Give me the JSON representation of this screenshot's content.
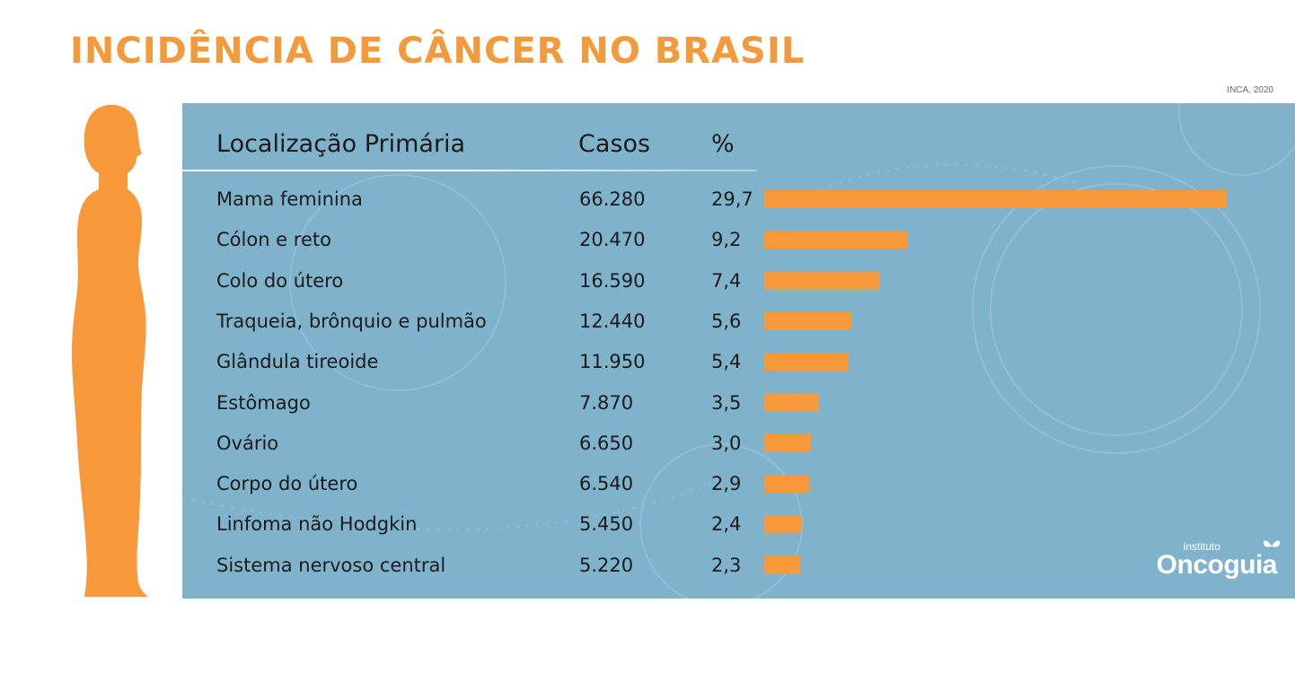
{
  "title": "INCIDÊNCIA DE CÂNCER NO BRASIL",
  "source": "INCA, 2020",
  "logo": {
    "small": "instituto",
    "big": "Oncoguia"
  },
  "colors": {
    "accent": "#f29a3c",
    "panel": "#7fb3cc",
    "bar": "#f7993a"
  },
  "icons": [
    "human-silhouette-icon",
    "butterfly-icon"
  ],
  "chart_data": {
    "type": "table",
    "title": "INCIDÊNCIA DE CÂNCER NO BRASIL",
    "columns": [
      "Localização Primária",
      "Casos",
      "%"
    ],
    "categories": [
      "Mama feminina",
      "Cólon e reto",
      "Colo do útero",
      "Traqueia, brônquio e pulmão",
      "Glândula tireoide",
      "Estômago",
      "Ovário",
      "Corpo do útero",
      "Linfoma não Hodgkin",
      "Sistema nervoso central"
    ],
    "cases": [
      "66.280",
      "20.470",
      "16.590",
      "12.440",
      "11.950",
      "7.870",
      "6.650",
      "6.540",
      "5.450",
      "5.220"
    ],
    "percent_labels": [
      "29,7",
      "9,2",
      "7,4",
      "5,6",
      "5,4",
      "3,5",
      "3,0",
      "2,9",
      "2,4",
      "2,3"
    ],
    "series": [
      {
        "values": [
          29.7,
          9.2,
          7.4,
          5.6,
          5.4,
          3.5,
          3.0,
          2.9,
          2.4,
          2.3
        ]
      }
    ],
    "bar_max": 29.7
  }
}
